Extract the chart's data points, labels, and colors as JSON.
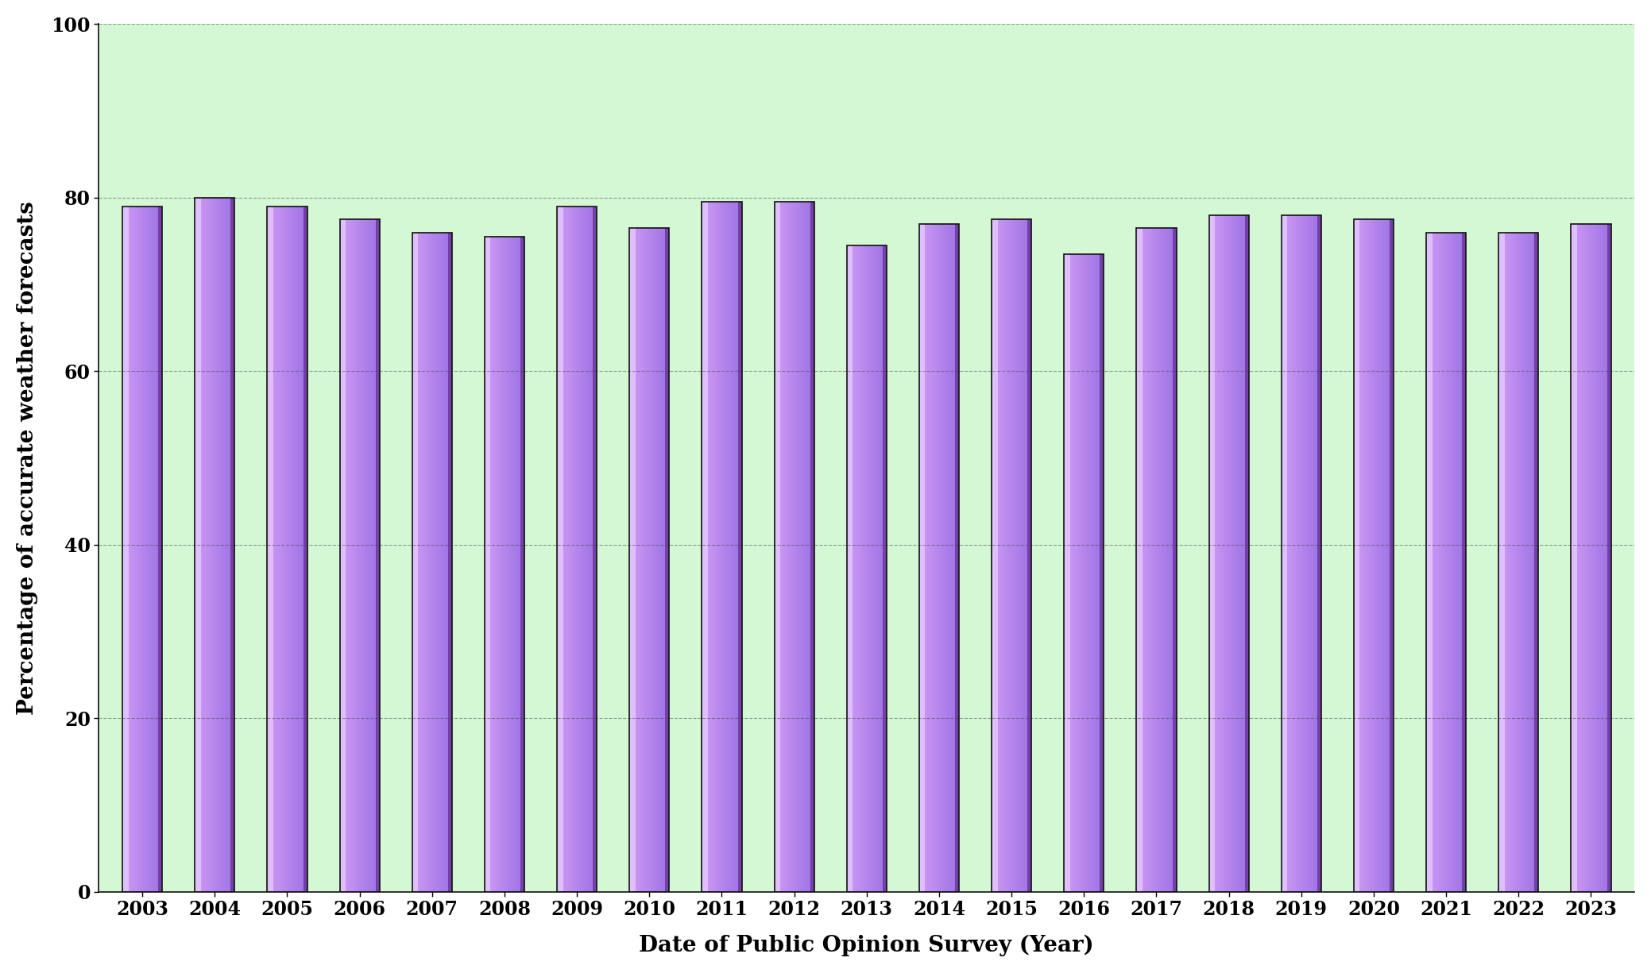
{
  "years": [
    2003,
    2004,
    2005,
    2006,
    2007,
    2008,
    2009,
    2010,
    2011,
    2012,
    2013,
    2014,
    2015,
    2016,
    2017,
    2018,
    2019,
    2020,
    2021,
    2022,
    2023
  ],
  "values": [
    79.0,
    80.0,
    79.0,
    77.5,
    76.0,
    75.5,
    79.0,
    76.5,
    79.5,
    79.5,
    74.5,
    77.0,
    77.5,
    73.5,
    76.5,
    78.0,
    78.0,
    77.5,
    76.0,
    76.0,
    77.0
  ],
  "bar_color_main": "#b57bee",
  "bar_color_light": "#d4aaff",
  "bar_color_dark": "#8844bb",
  "bar_edge_color": "#111111",
  "plot_bg_color": "#ffffff",
  "upper_bg_color": "#d4f7d4",
  "ylabel": "Percentage of accurate weather forecasts",
  "xlabel": "Date of Public Opinion Survey (Year)",
  "ylim": [
    0,
    100
  ],
  "yticks": [
    0,
    20,
    40,
    60,
    80,
    100
  ],
  "grid_color": "#444444",
  "grid_style": "--",
  "grid_alpha": 0.5,
  "label_fontsize": 20,
  "tick_fontsize": 17,
  "bar_width": 0.55
}
